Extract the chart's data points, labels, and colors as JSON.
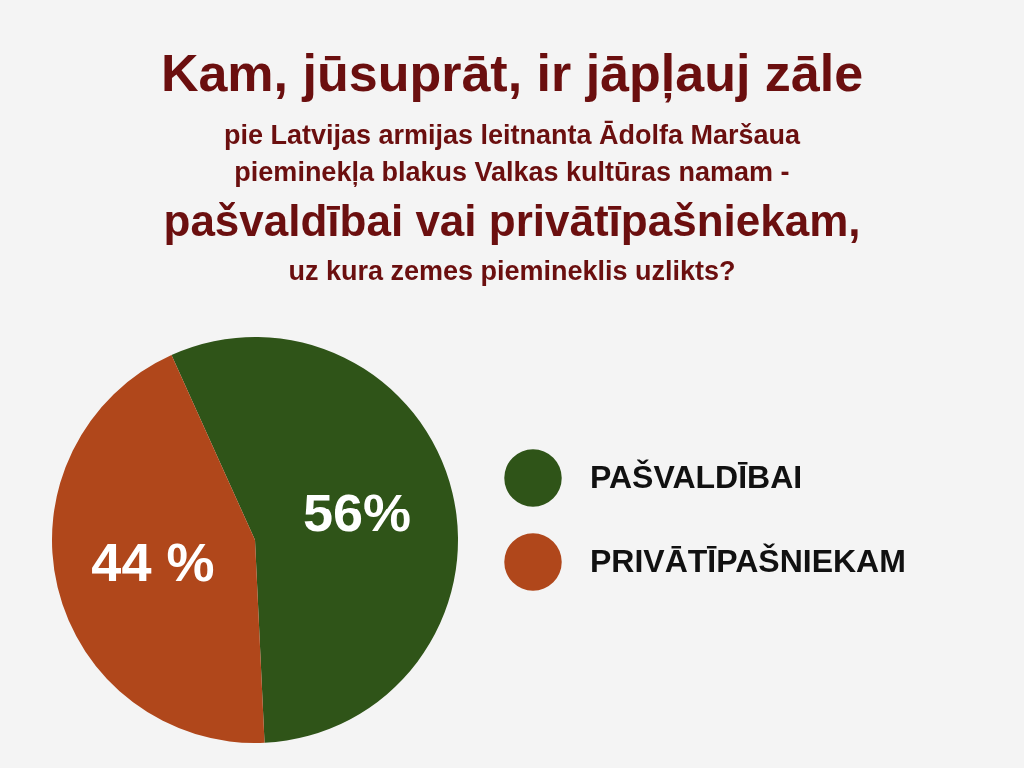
{
  "chart_data": {
    "type": "pie",
    "title": "Kam, jūsuprāt, ir jāpļauj zāle\npie Latvijas armijas leitnanta Ādolfa Maršaua\npieminekļa blakus Valkas kultūras namam -\npašvaldībai vai privātīpašniekam,\nuz kura zemes piemineklis uzlikts?",
    "categories": [
      "PAŠVALDĪBAI",
      "PRIVĀTĪPAŠNIEKAM"
    ],
    "values": [
      56,
      44
    ],
    "colors": [
      "#2f5418",
      "#b0471b"
    ],
    "value_labels": [
      "56%",
      "44 %"
    ],
    "legend": "right"
  }
}
